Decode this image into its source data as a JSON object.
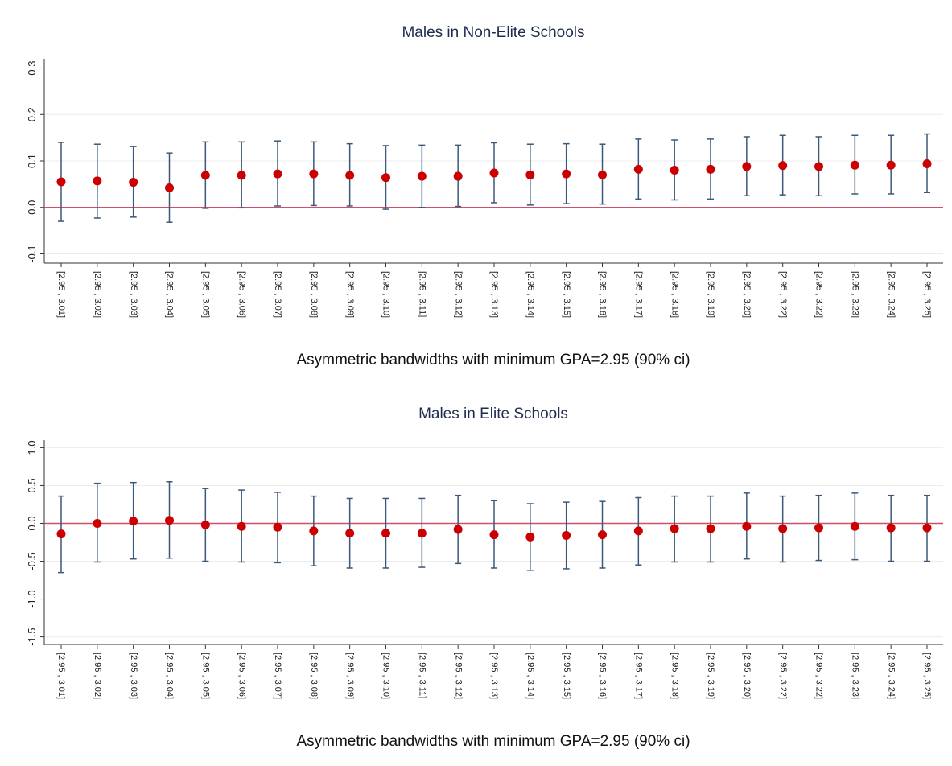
{
  "chart_data": [
    {
      "type": "errorbar",
      "title": "Males in Non-Elite Schools",
      "x_label": "Asymmetric bandwidths with minimum GPA=2.95 (90% ci)",
      "categories": [
        "[2.95 , 3.01]",
        "[2.95 , 3.02]",
        "[2.95 , 3.03]",
        "[2.95 , 3.04]",
        "[2.95 , 3.05]",
        "[2.95 , 3.06]",
        "[2.95 , 3.07]",
        "[2.95 , 3.08]",
        "[2.95 , 3.09]",
        "[2.95 , 3.10]",
        "[2.95 , 3.11]",
        "[2.95 , 3.12]",
        "[2.95 , 3.13]",
        "[2.95 , 3.14]",
        "[2.95 , 3.15]",
        "[2.95 , 3.16]",
        "[2.95 , 3.17]",
        "[2.95 , 3.18]",
        "[2.95 , 3.19]",
        "[2.95 , 3.20]",
        "[2.95 , 3.22]",
        "[2.95 , 3.22]",
        "[2.95 , 3.23]",
        "[2.95 , 3.24]",
        "[2.95 , 3.25]"
      ],
      "values": [
        0.055,
        0.057,
        0.054,
        0.042,
        0.069,
        0.069,
        0.072,
        0.072,
        0.069,
        0.064,
        0.067,
        0.067,
        0.074,
        0.07,
        0.072,
        0.07,
        0.082,
        0.08,
        0.082,
        0.088,
        0.09,
        0.088,
        0.091,
        0.091,
        0.094
      ],
      "lower": [
        -0.03,
        -0.023,
        -0.021,
        -0.032,
        -0.002,
        -0.001,
        0.003,
        0.004,
        0.003,
        -0.004,
        0,
        0.002,
        0.01,
        0.005,
        0.008,
        0.007,
        0.018,
        0.016,
        0.018,
        0.025,
        0.027,
        0.025,
        0.029,
        0.029,
        0.032
      ],
      "upper": [
        0.14,
        0.136,
        0.131,
        0.117,
        0.141,
        0.141,
        0.143,
        0.141,
        0.137,
        0.133,
        0.134,
        0.134,
        0.139,
        0.136,
        0.137,
        0.136,
        0.147,
        0.145,
        0.147,
        0.152,
        0.155,
        0.152,
        0.155,
        0.155,
        0.158
      ],
      "ylim": [
        -0.12,
        0.32
      ],
      "yticks": [
        {
          "value": -0.1,
          "label": "-0.1"
        },
        {
          "value": 0,
          "label": "0.0"
        },
        {
          "value": 0.1,
          "label": "0.1"
        },
        {
          "value": 0.2,
          "label": "0.2"
        },
        {
          "value": 0.3,
          "label": "0.3"
        }
      ],
      "reference_line": 0,
      "grid": true,
      "point_color": "#cc0000",
      "bar_color": "#3b5877",
      "reference_color": "#d0506a"
    },
    {
      "type": "errorbar",
      "title": "Males in Elite Schools",
      "x_label": "Asymmetric bandwidths with minimum GPA=2.95 (90% ci)",
      "categories": [
        "[2.95 , 3.01]",
        "[2.95 , 3.02]",
        "[2.95 , 3.03]",
        "[2.95 , 3.04]",
        "[2.95 , 3.05]",
        "[2.95 , 3.06]",
        "[2.95 , 3.07]",
        "[2.95 , 3.08]",
        "[2.95 , 3.09]",
        "[2.95 , 3.10]",
        "[2.95 , 3.11]",
        "[2.95 , 3.12]",
        "[2.95 , 3.13]",
        "[2.95 , 3.14]",
        "[2.95 , 3.15]",
        "[2.95 , 3.16]",
        "[2.95 , 3.17]",
        "[2.95 , 3.18]",
        "[2.95 , 3.19]",
        "[2.95 , 3.20]",
        "[2.95 , 3.22]",
        "[2.95 , 3.22]",
        "[2.95 , 3.23]",
        "[2.95 , 3.24]",
        "[2.95 , 3.25]"
      ],
      "values": [
        -0.14,
        0,
        0.03,
        0.04,
        -0.02,
        -0.04,
        -0.05,
        -0.1,
        -0.13,
        -0.13,
        -0.13,
        -0.08,
        -0.15,
        -0.18,
        -0.16,
        -0.15,
        -0.1,
        -0.07,
        -0.07,
        -0.04,
        -0.07,
        -0.06,
        -0.04,
        -0.06,
        -0.06
      ],
      "lower": [
        -0.65,
        -0.51,
        -0.47,
        -0.46,
        -0.5,
        -0.51,
        -0.52,
        -0.56,
        -0.59,
        -0.59,
        -0.58,
        -0.53,
        -0.59,
        -0.62,
        -0.6,
        -0.59,
        -0.55,
        -0.51,
        -0.51,
        -0.47,
        -0.51,
        -0.49,
        -0.48,
        -0.5,
        -0.5
      ],
      "upper": [
        0.36,
        0.53,
        0.54,
        0.55,
        0.46,
        0.44,
        0.41,
        0.36,
        0.33,
        0.33,
        0.33,
        0.37,
        0.3,
        0.26,
        0.28,
        0.29,
        0.34,
        0.36,
        0.36,
        0.4,
        0.36,
        0.37,
        0.4,
        0.37,
        0.37
      ],
      "ylim": [
        -1.6,
        1.1
      ],
      "yticks": [
        {
          "value": -1.5,
          "label": "-1.5"
        },
        {
          "value": -1,
          "label": "-1.0"
        },
        {
          "value": -0.5,
          "label": "-0.5"
        },
        {
          "value": 0,
          "label": "0.0"
        },
        {
          "value": 0.5,
          "label": "0.5"
        },
        {
          "value": 1,
          "label": "1.0"
        }
      ],
      "reference_line": 0,
      "grid": true,
      "point_color": "#cc0000",
      "bar_color": "#3b5877",
      "reference_color": "#d0506a"
    }
  ]
}
